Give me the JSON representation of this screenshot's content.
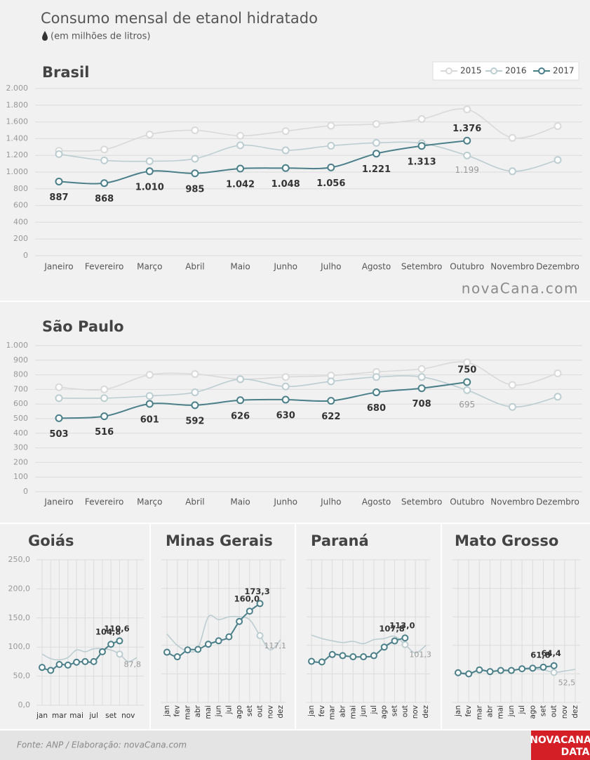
{
  "header": {
    "title": "Consumo mensal de etanol hidratado",
    "subtitle": "(em milhões de litros)"
  },
  "chart_data": [
    {
      "type": "line",
      "title": "Brasil",
      "categories": [
        "Janeiro",
        "Fevereiro",
        "Março",
        "Abril",
        "Maio",
        "Junho",
        "Julho",
        "Agosto",
        "Setembro",
        "Outubro",
        "Novembro",
        "Dezembro"
      ],
      "ylim": [
        0,
        2000
      ],
      "yticks": [
        0,
        200,
        400,
        600,
        800,
        {
          "value": 1000,
          "label": "1.000"
        },
        {
          "value": 1200,
          "label": "1.200"
        },
        {
          "value": 1400,
          "label": "1.400"
        },
        {
          "value": 1600,
          "label": "1.600"
        },
        {
          "value": 1800,
          "label": "1.800"
        },
        {
          "value": 2000,
          "label": "2.000"
        }
      ],
      "grid": true,
      "legend": "top-right",
      "series": [
        {
          "name": "2015",
          "color": "#d9d9d9",
          "values": [
            1255,
            1270,
            1450,
            1500,
            1435,
            1490,
            1555,
            1575,
            1635,
            1750,
            1410,
            1550
          ]
        },
        {
          "name": "2016",
          "color": "#bccdd1",
          "values": [
            1215,
            1140,
            1130,
            1160,
            1320,
            1260,
            1315,
            1350,
            1345,
            1199,
            1010,
            1145
          ],
          "value_labels": [
            null,
            null,
            null,
            null,
            null,
            null,
            null,
            null,
            null,
            "1.199",
            null,
            null
          ]
        },
        {
          "name": "2017",
          "color": "#4b7f89",
          "values": [
            887,
            868,
            1010,
            985,
            1042,
            1048,
            1056,
            1221,
            1313,
            1376,
            null,
            null
          ],
          "value_labels": [
            "887",
            "868",
            "1.010",
            "985",
            "1.042",
            "1.048",
            "1.056",
            "1.221",
            "1.313",
            "1.376",
            null,
            null
          ]
        }
      ]
    },
    {
      "type": "line",
      "title": "São Paulo",
      "categories": [
        "Janeiro",
        "Fevereiro",
        "Março",
        "Abril",
        "Maio",
        "Junho",
        "Julho",
        "Agosto",
        "Setembro",
        "Outubro",
        "Novembro",
        "Dezembro"
      ],
      "ylim": [
        0,
        1000
      ],
      "yticks": [
        0,
        100,
        200,
        300,
        400,
        500,
        600,
        700,
        800,
        900,
        {
          "value": 1000,
          "label": "1.000"
        }
      ],
      "grid": true,
      "series": [
        {
          "name": "2015",
          "color": "#d9d9d9",
          "values": [
            715,
            700,
            800,
            805,
            770,
            785,
            795,
            820,
            840,
            885,
            730,
            810
          ]
        },
        {
          "name": "2016",
          "color": "#bccdd1",
          "values": [
            640,
            640,
            655,
            680,
            770,
            720,
            755,
            785,
            785,
            695,
            580,
            650
          ],
          "value_labels": [
            null,
            null,
            null,
            null,
            null,
            null,
            null,
            null,
            null,
            "695",
            null,
            null
          ]
        },
        {
          "name": "2017",
          "color": "#4b7f89",
          "values": [
            503,
            516,
            601,
            592,
            626,
            630,
            622,
            680,
            708,
            750,
            null,
            null
          ],
          "value_labels": [
            "503",
            "516",
            "601",
            "592",
            "626",
            "630",
            "622",
            "680",
            "708",
            "750",
            null,
            null
          ]
        }
      ]
    },
    {
      "type": "line",
      "title": "Goiás",
      "categories": [
        "jan",
        null,
        "mar",
        null,
        "mai",
        null,
        "jul",
        null,
        "set",
        null,
        "nov",
        null
      ],
      "ylim": [
        0,
        250
      ],
      "yticks": [
        {
          "value": 0,
          "label": "0,0"
        },
        {
          "value": 50,
          "label": "50,0"
        },
        {
          "value": 100,
          "label": "100,0"
        },
        {
          "value": 150,
          "label": "150,0"
        },
        {
          "value": 200,
          "label": "200,0"
        },
        {
          "value": 250,
          "label": "250,0"
        }
      ],
      "grid": true,
      "series": [
        {
          "name": "2016",
          "color": "#bccdd1",
          "values": [
            88,
            80,
            78,
            82,
            95,
            92,
            97,
            97,
            95,
            87.8,
            75,
            82
          ],
          "value_labels": [
            null,
            null,
            null,
            null,
            null,
            null,
            null,
            null,
            null,
            "87,8",
            null,
            null
          ]
        },
        {
          "name": "2017",
          "color": "#4b7f89",
          "values": [
            65,
            60,
            70,
            69,
            74,
            75,
            75,
            92,
            104.8,
            110.6,
            null,
            null
          ],
          "value_labels": [
            null,
            null,
            null,
            null,
            null,
            null,
            null,
            null,
            "104,8",
            "110,6",
            null,
            null
          ]
        }
      ]
    },
    {
      "type": "line",
      "title": "Minas Gerais",
      "categories": [
        "jan",
        "fev",
        "mar",
        "abr",
        "mai",
        "jun",
        "jul",
        "ago",
        "set",
        "out",
        "nov",
        "dez"
      ],
      "ylim": [
        0,
        250
      ],
      "yticks": [
        0,
        50,
        100,
        150,
        200,
        250
      ],
      "ytick_labels": false,
      "grid": true,
      "series": [
        {
          "name": "2016",
          "color": "#bccdd1",
          "values": [
            120,
            100,
            90,
            95,
            150,
            145,
            150,
            150,
            145,
            117.1,
            92,
            110
          ],
          "value_labels": [
            null,
            null,
            null,
            null,
            null,
            null,
            null,
            null,
            null,
            "117,1",
            null,
            null
          ]
        },
        {
          "name": "2017",
          "color": "#4b7f89",
          "values": [
            88,
            80,
            92,
            93,
            102,
            108,
            115,
            142,
            160,
            173.3,
            null,
            null
          ],
          "value_labels": [
            null,
            null,
            null,
            null,
            null,
            null,
            null,
            null,
            "160,0",
            "173,3",
            null,
            null
          ]
        }
      ]
    },
    {
      "type": "line",
      "title": "Paraná",
      "categories": [
        "jan",
        "fev",
        "mar",
        "abr",
        "mai",
        "jun",
        "jul",
        "ago",
        "set",
        "out",
        "nov",
        "dez"
      ],
      "ylim": [
        0,
        250
      ],
      "yticks": [
        0,
        50,
        100,
        150,
        200,
        250
      ],
      "ytick_labels": false,
      "grid": true,
      "series": [
        {
          "name": "2016",
          "color": "#bccdd1",
          "values": [
            118,
            112,
            108,
            105,
            107,
            103,
            110,
            112,
            116,
            101.3,
            87,
            100
          ],
          "value_labels": [
            null,
            null,
            null,
            null,
            null,
            null,
            null,
            null,
            null,
            "101,3",
            null,
            null
          ]
        },
        {
          "name": "2017",
          "color": "#4b7f89",
          "values": [
            72,
            71,
            84,
            82,
            80,
            80,
            82,
            97,
            107.8,
            113,
            null,
            null
          ],
          "value_labels": [
            null,
            null,
            null,
            null,
            null,
            null,
            null,
            null,
            "107,8",
            "113,0",
            null,
            null
          ]
        }
      ]
    },
    {
      "type": "line",
      "title": "Mato Grosso",
      "categories": [
        "jan",
        "fev",
        "mar",
        "abr",
        "mai",
        "jun",
        "jul",
        "ago",
        "set",
        "out",
        "nov",
        "dez"
      ],
      "ylim": [
        0,
        250
      ],
      "yticks": [
        0,
        50,
        100,
        150,
        200,
        250
      ],
      "ytick_labels": false,
      "grid": true,
      "series": [
        {
          "name": "2016",
          "color": "#bccdd1",
          "values": [
            52,
            52,
            55,
            55,
            57,
            57,
            58,
            58,
            57,
            52.5,
            55,
            58
          ],
          "value_labels": [
            null,
            null,
            null,
            null,
            null,
            null,
            null,
            null,
            null,
            "52,5",
            null,
            null
          ]
        },
        {
          "name": "2017",
          "color": "#4b7f89",
          "values": [
            52,
            50,
            57,
            54,
            56,
            56,
            59,
            60,
            61.8,
            64.4,
            null,
            null
          ],
          "value_labels": [
            null,
            null,
            null,
            null,
            null,
            null,
            null,
            null,
            "61,8",
            "64,4",
            null,
            null
          ]
        }
      ]
    }
  ],
  "footer": {
    "source": "Fonte: ANP  / Elaboração: novaCana.com",
    "watermark": "novaCana.com",
    "logo_top": "NOVACANA",
    "logo_bottom": "DATA"
  }
}
